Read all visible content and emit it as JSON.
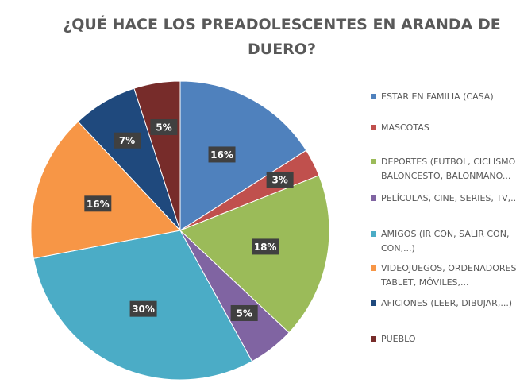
{
  "chart_data": {
    "type": "pie",
    "title": [
      "¿QUÉ HACE LOS PREADOLESCENTES EN ARANDA DE",
      "DUERO?"
    ],
    "categories": [
      "ESTAR EN FAMILIA (CASA)",
      "MASCOTAS",
      "DEPORTES (FUTBOL, CICLISMO,\nBALONCESTO, BALONMANO...",
      "PELÍCULAS, CINE, SERIES, TV,...",
      "AMIGOS (IR CON, SALIR CON,\nCON,...)",
      "VIDEOJUEGOS, ORDENADORES,\nTABLET, MÓVILES,...",
      "AFICIONES (LEER, DIBUJAR,...)",
      "PUEBLO"
    ],
    "values": [
      16,
      3,
      18,
      5,
      30,
      16,
      7,
      5
    ],
    "value_labels": [
      "16%",
      "3%",
      "18%",
      "5%",
      "30%",
      "16%",
      "7%",
      "5%"
    ],
    "colors": [
      "#4f81bd",
      "#c0504d",
      "#9bbb59",
      "#8064a2",
      "#4bacc6",
      "#f79646",
      "#1f497d",
      "#772c2a"
    ],
    "legend": "right"
  }
}
